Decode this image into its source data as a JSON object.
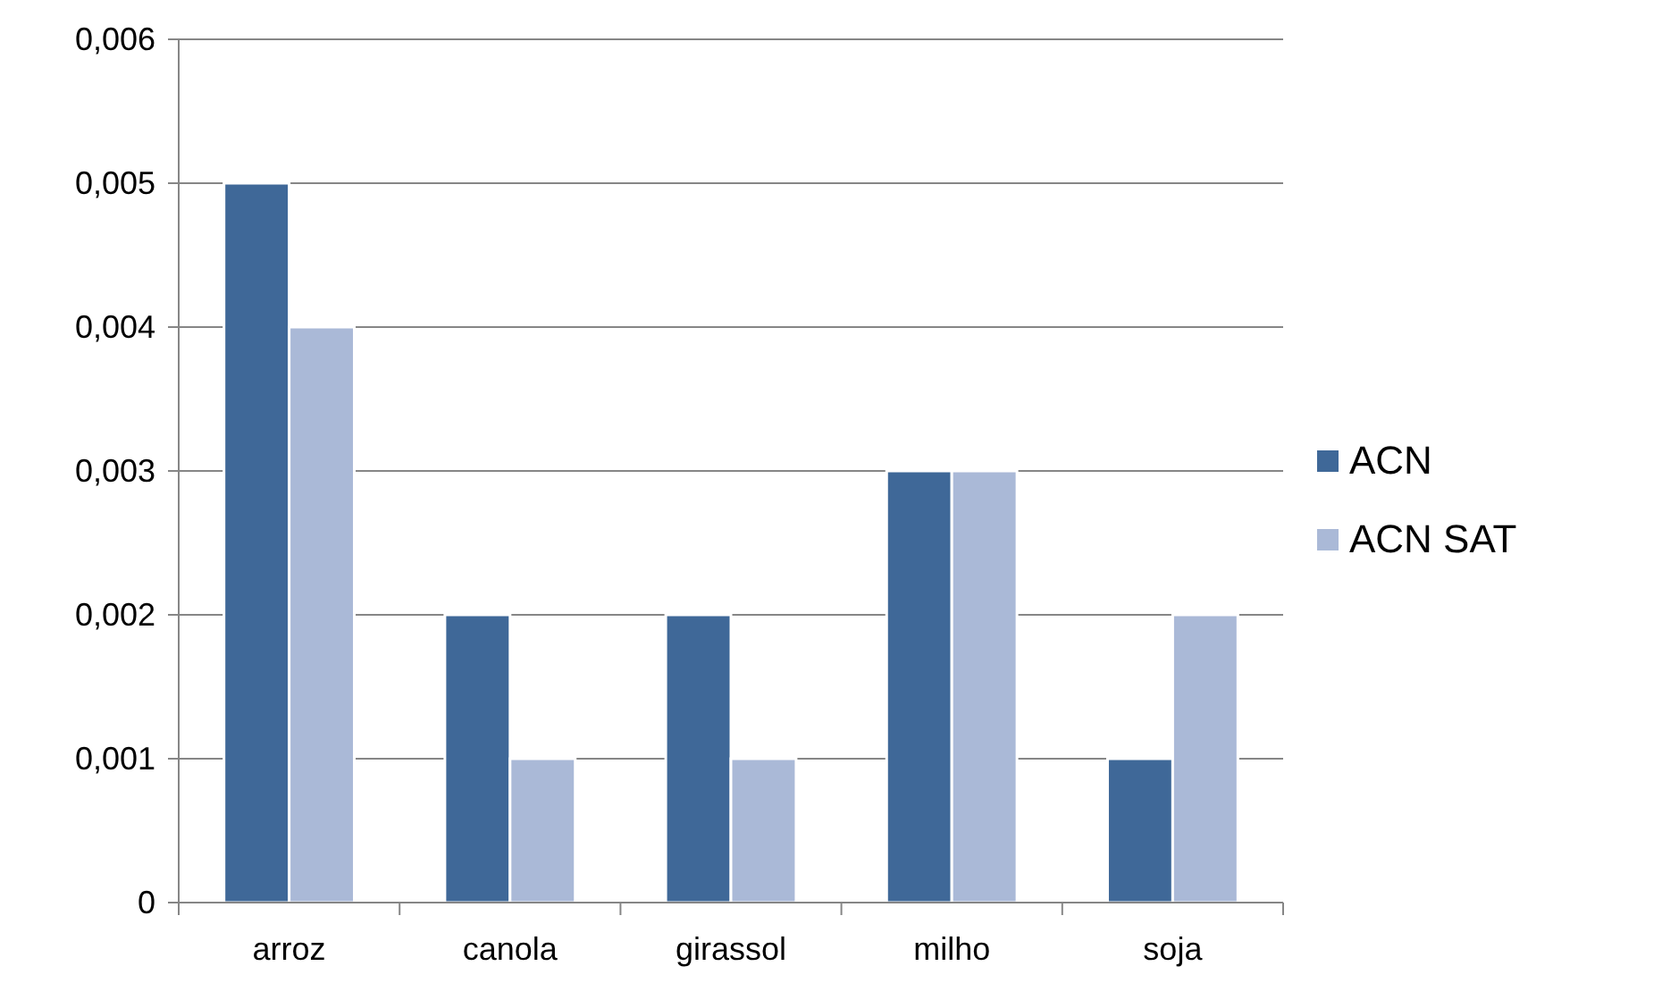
{
  "chart_data": {
    "type": "bar",
    "categories": [
      "arroz",
      "canola",
      "girassol",
      "milho",
      "soja"
    ],
    "series": [
      {
        "name": "ACN",
        "color": "#3f6898",
        "values": [
          0.005,
          0.002,
          0.002,
          0.003,
          0.001
        ]
      },
      {
        "name": "ACN SAT",
        "color": "#aab9d7",
        "values": [
          0.004,
          0.001,
          0.001,
          0.003,
          0.002
        ]
      }
    ],
    "ylim": [
      0,
      0.006
    ],
    "yticks": [
      0,
      {
        "value": 0.001,
        "label": "0,001"
      },
      {
        "value": 0.002,
        "label": "0,002"
      },
      {
        "value": 0.003,
        "label": "0,003"
      },
      {
        "value": 0.004,
        "label": "0,004"
      },
      {
        "value": 0.005,
        "label": "0,005"
      },
      {
        "value": 0.006,
        "label": "0,006"
      }
    ],
    "grid": "y",
    "legend": "right"
  }
}
